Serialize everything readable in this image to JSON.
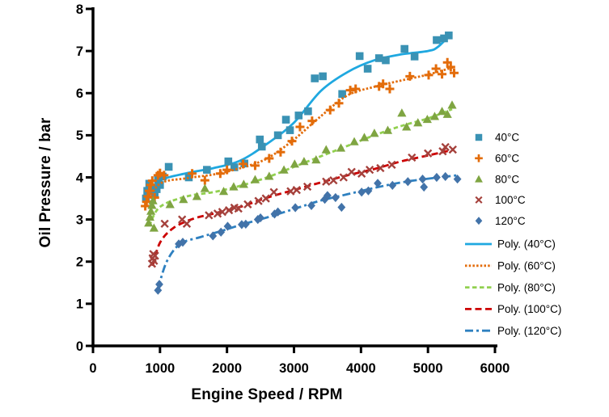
{
  "chart_data": {
    "type": "scatter",
    "title": "",
    "xlabel": "Engine Speed / RPM",
    "ylabel": "Oil Pressure / bar",
    "xlim": [
      0,
      6000
    ],
    "ylim": [
      0,
      8
    ],
    "xticks": [
      0,
      1000,
      2000,
      3000,
      4000,
      5000,
      6000
    ],
    "yticks": [
      0,
      1,
      2,
      3,
      4,
      5,
      6,
      7,
      8
    ],
    "grid": false,
    "legend_position": "right",
    "axis_color": "#000000",
    "series": [
      {
        "id": "40c",
        "name": "40°C",
        "marker": "square",
        "marker_color": "#3A92B4",
        "points": [
          [
            790,
            3.5
          ],
          [
            810,
            3.68
          ],
          [
            840,
            3.85
          ],
          [
            880,
            3.76
          ],
          [
            920,
            3.6
          ],
          [
            950,
            3.72
          ],
          [
            970,
            3.95
          ],
          [
            1000,
            3.82
          ],
          [
            1040,
            4.02
          ],
          [
            1130,
            4.25
          ],
          [
            1430,
            4.0
          ],
          [
            1700,
            4.18
          ],
          [
            2020,
            4.38
          ],
          [
            2110,
            4.24
          ],
          [
            2260,
            4.33
          ],
          [
            2490,
            4.9
          ],
          [
            2520,
            4.73
          ],
          [
            2760,
            5.0
          ],
          [
            2880,
            5.37
          ],
          [
            2940,
            5.12
          ],
          [
            3070,
            5.47
          ],
          [
            3210,
            5.57
          ],
          [
            3310,
            6.35
          ],
          [
            3430,
            6.4
          ],
          [
            3720,
            5.98
          ],
          [
            3980,
            6.88
          ],
          [
            4100,
            6.58
          ],
          [
            4270,
            6.83
          ],
          [
            4370,
            6.78
          ],
          [
            4650,
            7.05
          ],
          [
            4800,
            6.87
          ],
          [
            5130,
            7.26
          ],
          [
            5240,
            7.3
          ],
          [
            5310,
            7.37
          ]
        ],
        "trend": {
          "label": "Poly. (40°C)",
          "color": "#1FA8E0",
          "dash": "solid",
          "curve": [
            [
              800,
              3.55
            ],
            [
              1000,
              3.92
            ],
            [
              1400,
              4.1
            ],
            [
              1800,
              4.22
            ],
            [
              2200,
              4.4
            ],
            [
              2600,
              4.8
            ],
            [
              3000,
              5.3
            ],
            [
              3400,
              6.05
            ],
            [
              3800,
              6.5
            ],
            [
              4200,
              6.78
            ],
            [
              4600,
              6.92
            ],
            [
              5000,
              7.0
            ],
            [
              5150,
              7.1
            ],
            [
              5350,
              7.42
            ]
          ]
        }
      },
      {
        "id": "60c",
        "name": "60°C",
        "marker": "plus",
        "marker_color": "#E36C0A",
        "points": [
          [
            780,
            3.32
          ],
          [
            800,
            3.42
          ],
          [
            820,
            3.55
          ],
          [
            840,
            3.68
          ],
          [
            860,
            3.82
          ],
          [
            885,
            3.92
          ],
          [
            920,
            3.52
          ],
          [
            970,
            4.05
          ],
          [
            1000,
            4.1
          ],
          [
            1060,
            4.05
          ],
          [
            1480,
            4.09
          ],
          [
            1670,
            3.93
          ],
          [
            1900,
            4.09
          ],
          [
            2000,
            4.18
          ],
          [
            2240,
            4.32
          ],
          [
            2420,
            4.28
          ],
          [
            2630,
            4.45
          ],
          [
            2800,
            4.6
          ],
          [
            2970,
            4.86
          ],
          [
            3090,
            5.2
          ],
          [
            3270,
            5.34
          ],
          [
            3540,
            5.6
          ],
          [
            3670,
            5.76
          ],
          [
            3840,
            6.07
          ],
          [
            3920,
            6.1
          ],
          [
            4270,
            6.16
          ],
          [
            4330,
            6.22
          ],
          [
            4430,
            6.1
          ],
          [
            4730,
            6.4
          ],
          [
            5010,
            6.43
          ],
          [
            5120,
            6.58
          ],
          [
            5210,
            6.45
          ],
          [
            5290,
            6.73
          ],
          [
            5340,
            6.62
          ],
          [
            5390,
            6.48
          ]
        ],
        "trend": {
          "label": "Poly. (60°C)",
          "color": "#E36C0A",
          "dash": "2.5 2.2",
          "curve": [
            [
              790,
              3.35
            ],
            [
              1000,
              3.85
            ],
            [
              1400,
              3.98
            ],
            [
              1800,
              4.07
            ],
            [
              2200,
              4.22
            ],
            [
              2600,
              4.45
            ],
            [
              3000,
              4.9
            ],
            [
              3400,
              5.45
            ],
            [
              3800,
              5.95
            ],
            [
              4200,
              6.15
            ],
            [
              4600,
              6.3
            ],
            [
              5000,
              6.44
            ],
            [
              5390,
              6.62
            ]
          ]
        }
      },
      {
        "id": "80c",
        "name": "80°C",
        "marker": "triangle",
        "marker_color": "#7FA542",
        "points": [
          [
            830,
            2.92
          ],
          [
            850,
            3.06
          ],
          [
            865,
            3.2
          ],
          [
            880,
            3.34
          ],
          [
            895,
            3.45
          ],
          [
            910,
            2.8
          ],
          [
            1150,
            3.36
          ],
          [
            1350,
            3.48
          ],
          [
            1550,
            3.55
          ],
          [
            1670,
            3.74
          ],
          [
            1950,
            3.67
          ],
          [
            2100,
            3.78
          ],
          [
            2250,
            3.84
          ],
          [
            2420,
            3.95
          ],
          [
            2630,
            4.03
          ],
          [
            2850,
            4.18
          ],
          [
            3010,
            4.32
          ],
          [
            3150,
            4.38
          ],
          [
            3330,
            4.42
          ],
          [
            3480,
            4.66
          ],
          [
            3700,
            4.7
          ],
          [
            3900,
            4.85
          ],
          [
            4050,
            4.95
          ],
          [
            4200,
            5.05
          ],
          [
            4400,
            5.12
          ],
          [
            4610,
            5.53
          ],
          [
            4680,
            5.2
          ],
          [
            4850,
            5.3
          ],
          [
            4990,
            5.38
          ],
          [
            5100,
            5.45
          ],
          [
            5210,
            5.57
          ],
          [
            5290,
            5.5
          ],
          [
            5360,
            5.72
          ]
        ],
        "trend": {
          "label": "Poly. (80°C)",
          "color": "#92D050",
          "dash": "5.5 3.5",
          "curve": [
            [
              840,
              2.85
            ],
            [
              1000,
              3.3
            ],
            [
              1400,
              3.55
            ],
            [
              1800,
              3.65
            ],
            [
              2200,
              3.8
            ],
            [
              2600,
              4.0
            ],
            [
              3000,
              4.25
            ],
            [
              3400,
              4.5
            ],
            [
              3800,
              4.75
            ],
            [
              4200,
              5.0
            ],
            [
              4600,
              5.22
            ],
            [
              5000,
              5.4
            ],
            [
              5360,
              5.62
            ]
          ]
        }
      },
      {
        "id": "100c",
        "name": "100°C",
        "marker": "x",
        "marker_color": "#A5413C",
        "points": [
          [
            880,
            1.95
          ],
          [
            890,
            2.08
          ],
          [
            900,
            2.18
          ],
          [
            910,
            2.02
          ],
          [
            925,
            2.14
          ],
          [
            1070,
            2.9
          ],
          [
            1330,
            3.0
          ],
          [
            1400,
            2.9
          ],
          [
            1730,
            3.1
          ],
          [
            1860,
            3.14
          ],
          [
            1930,
            3.18
          ],
          [
            2030,
            3.22
          ],
          [
            2110,
            3.28
          ],
          [
            2170,
            3.26
          ],
          [
            2310,
            3.36
          ],
          [
            2470,
            3.44
          ],
          [
            2580,
            3.5
          ],
          [
            2700,
            3.65
          ],
          [
            2950,
            3.67
          ],
          [
            3040,
            3.7
          ],
          [
            3200,
            3.78
          ],
          [
            3480,
            3.9
          ],
          [
            3590,
            3.93
          ],
          [
            3740,
            4.0
          ],
          [
            3860,
            4.13
          ],
          [
            4010,
            4.09
          ],
          [
            4130,
            4.18
          ],
          [
            4290,
            4.22
          ],
          [
            4460,
            4.3
          ],
          [
            4760,
            4.47
          ],
          [
            5000,
            4.57
          ],
          [
            5220,
            4.62
          ],
          [
            5260,
            4.72
          ],
          [
            5370,
            4.66
          ]
        ],
        "trend": {
          "label": "Poly. (100°C)",
          "color": "#CC0000",
          "dash": "8 4.5",
          "curve": [
            [
              890,
              1.9
            ],
            [
              1000,
              2.45
            ],
            [
              1200,
              2.8
            ],
            [
              1500,
              3.02
            ],
            [
              1800,
              3.14
            ],
            [
              2200,
              3.3
            ],
            [
              2600,
              3.52
            ],
            [
              3000,
              3.7
            ],
            [
              3400,
              3.88
            ],
            [
              3800,
              4.05
            ],
            [
              4200,
              4.2
            ],
            [
              4600,
              4.38
            ],
            [
              5000,
              4.52
            ],
            [
              5370,
              4.65
            ]
          ]
        }
      },
      {
        "id": "120c",
        "name": "120°C",
        "marker": "diamond",
        "marker_color": "#4273A9",
        "points": [
          [
            970,
            1.32
          ],
          [
            990,
            1.46
          ],
          [
            1280,
            2.42
          ],
          [
            1340,
            2.46
          ],
          [
            1790,
            2.61
          ],
          [
            1910,
            2.7
          ],
          [
            2010,
            2.84
          ],
          [
            2220,
            2.88
          ],
          [
            2280,
            2.89
          ],
          [
            2460,
            3.0
          ],
          [
            2500,
            3.04
          ],
          [
            2710,
            3.13
          ],
          [
            2760,
            3.18
          ],
          [
            3020,
            3.28
          ],
          [
            3260,
            3.33
          ],
          [
            3460,
            3.48
          ],
          [
            3500,
            3.57
          ],
          [
            3620,
            3.52
          ],
          [
            3710,
            3.29
          ],
          [
            4010,
            3.65
          ],
          [
            4110,
            3.68
          ],
          [
            4250,
            3.86
          ],
          [
            4470,
            3.81
          ],
          [
            4700,
            3.9
          ],
          [
            4920,
            3.96
          ],
          [
            4940,
            3.77
          ],
          [
            5130,
            4.0
          ],
          [
            5260,
            4.02
          ],
          [
            5440,
            3.96
          ]
        ],
        "trend": {
          "label": "Poly. (120°C)",
          "color": "#2E80C0",
          "dash": "10 4 3 4",
          "curve": [
            [
              970,
              1.35
            ],
            [
              1100,
              2.0
            ],
            [
              1300,
              2.42
            ],
            [
              1600,
              2.58
            ],
            [
              1900,
              2.72
            ],
            [
              2200,
              2.87
            ],
            [
              2600,
              3.05
            ],
            [
              3000,
              3.25
            ],
            [
              3400,
              3.45
            ],
            [
              3800,
              3.6
            ],
            [
              4200,
              3.75
            ],
            [
              4600,
              3.88
            ],
            [
              5000,
              3.97
            ],
            [
              5440,
              4.05
            ]
          ]
        }
      }
    ]
  }
}
